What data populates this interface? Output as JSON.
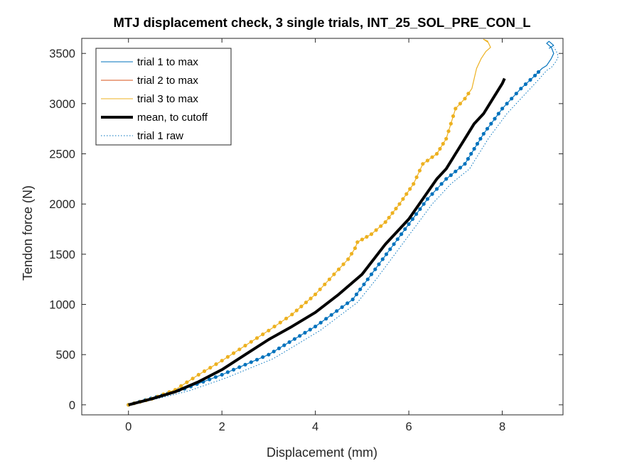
{
  "chart_data": {
    "type": "line",
    "title": "MTJ displacement check, 3 single trials, INT_25_SOL_PRE_CON_L",
    "xlabel": "Displacement (mm)",
    "ylabel": "Tendon force (N)",
    "xlim": [
      -1,
      9.3
    ],
    "ylim": [
      -100,
      3650
    ],
    "xticks": [
      0,
      2,
      4,
      6,
      8
    ],
    "yticks": [
      0,
      500,
      1000,
      1500,
      2000,
      2500,
      3000,
      3500
    ],
    "grid": false,
    "legend_position": "top-left",
    "series": [
      {
        "name": "trial 1 to max",
        "color": "#0072BD",
        "style": "thin",
        "x": [
          0,
          0.6,
          1.2,
          2,
          3,
          4,
          4.8,
          5.2,
          5.6,
          6,
          6.4,
          6.8,
          7.2,
          7.6,
          8.0,
          8.4,
          8.7,
          8.85,
          8.95,
          9.05,
          9.1,
          9.05,
          8.95,
          9.0,
          9.1,
          9.0
        ],
        "y": [
          0,
          80,
          160,
          300,
          500,
          780,
          1050,
          1300,
          1550,
          1800,
          2050,
          2250,
          2400,
          2700,
          2950,
          3150,
          3280,
          3350,
          3380,
          3450,
          3500,
          3560,
          3600,
          3620,
          3580,
          3550
        ]
      },
      {
        "name": "trial 2 to max",
        "color": "#D95319",
        "style": "thin",
        "x": [],
        "y": []
      },
      {
        "name": "trial 3 to max",
        "color": "#EDB120",
        "style": "thin",
        "x": [
          0,
          0.5,
          1,
          1.5,
          2,
          2.5,
          3,
          3.5,
          4,
          4.4,
          4.7,
          4.85,
          4.9,
          5.2,
          5.5,
          5.8,
          6.1,
          6.3,
          6.6,
          6.8,
          6.9,
          7.0,
          7.2,
          7.35,
          7.4,
          7.45,
          7.55,
          7.65,
          7.75,
          7.7,
          7.6,
          7.7
        ],
        "y": [
          0,
          60,
          150,
          300,
          440,
          590,
          740,
          900,
          1100,
          1300,
          1450,
          1560,
          1620,
          1700,
          1820,
          2000,
          2200,
          2400,
          2500,
          2650,
          2800,
          2950,
          3050,
          3150,
          3250,
          3350,
          3450,
          3520,
          3560,
          3610,
          3640,
          3620
        ]
      },
      {
        "name": "mean, to cutoff",
        "color": "#000000",
        "style": "thick",
        "x": [
          0,
          0.5,
          1,
          1.5,
          2,
          2.5,
          3,
          3.5,
          4,
          4.5,
          5,
          5.5,
          6,
          6.3,
          6.6,
          6.8,
          7.0,
          7.2,
          7.4,
          7.6,
          7.8,
          8.0,
          8.05
        ],
        "y": [
          0,
          60,
          130,
          230,
          350,
          500,
          650,
          780,
          920,
          1100,
          1300,
          1600,
          1850,
          2050,
          2250,
          2350,
          2500,
          2650,
          2800,
          2900,
          3050,
          3200,
          3250
        ]
      },
      {
        "name": "trial 1 raw",
        "color": "#0072BD",
        "style": "dotted",
        "x": [
          0,
          0.7,
          1.3,
          2.1,
          3.1,
          4.1,
          4.9,
          5.3,
          5.7,
          6.1,
          6.5,
          6.9,
          7.3,
          7.7,
          8.1,
          8.5,
          8.8,
          8.95,
          9.05,
          9.15,
          9.2,
          9.15,
          9.1
        ],
        "y": [
          0,
          70,
          140,
          270,
          460,
          740,
          1020,
          1250,
          1500,
          1750,
          2000,
          2200,
          2350,
          2650,
          2900,
          3100,
          3250,
          3330,
          3360,
          3420,
          3470,
          3530,
          3560
        ]
      }
    ]
  }
}
